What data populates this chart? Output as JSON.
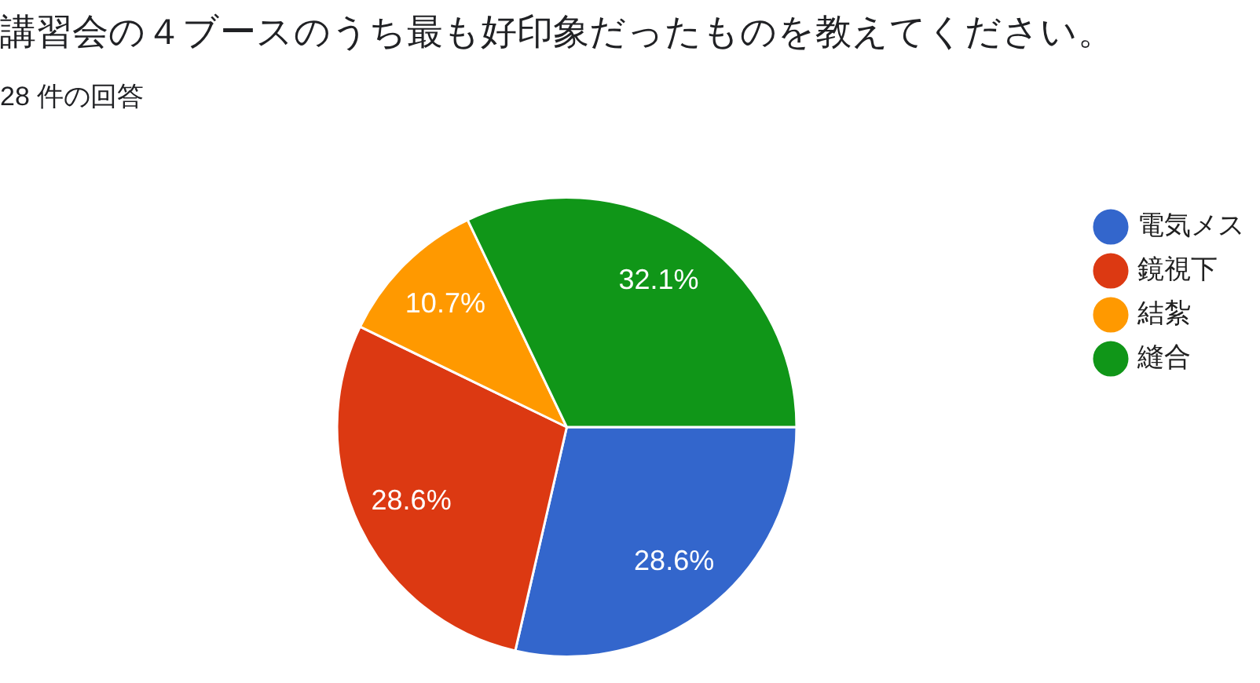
{
  "chart_data": {
    "type": "pie",
    "title": "講習会の４ブースのうち最も好印象だったものを教えてください。",
    "subtitle": "28 件の回答",
    "categories": [
      "電気メス",
      "鏡視下",
      "結紮",
      "縫合"
    ],
    "values": [
      28.6,
      28.6,
      10.7,
      32.1
    ],
    "colors": [
      "#3366cc",
      "#dc3912",
      "#ff9900",
      "#109618"
    ],
    "value_labels": [
      "28.6%",
      "28.6%",
      "10.7%",
      "32.1%"
    ],
    "legend": "top right"
  }
}
